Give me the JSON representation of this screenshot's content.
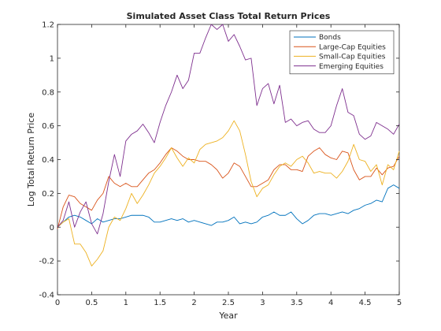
{
  "chart_data": {
    "type": "line",
    "title": "Simulated Asset Class Total Return Prices",
    "xlabel": "Year",
    "ylabel": "Log Total Return Price",
    "xlim": [
      0,
      5
    ],
    "ylim": [
      -0.4,
      1.2
    ],
    "xticks": [
      "0",
      "0.5",
      "1",
      "1.5",
      "2",
      "2.5",
      "3",
      "3.5",
      "4",
      "4.5",
      "5"
    ],
    "yticks": [
      "-0.4",
      "-0.2",
      "0",
      "0.2",
      "0.4",
      "0.6",
      "0.8",
      "1",
      "1.2"
    ],
    "grid": false,
    "legend_position": "top-right",
    "x": [
      0,
      0.08333,
      0.16667,
      0.25,
      0.33333,
      0.41667,
      0.5,
      0.58333,
      0.66667,
      0.75,
      0.83333,
      0.91667,
      1,
      1.08333,
      1.16667,
      1.25,
      1.33333,
      1.41667,
      1.5,
      1.58333,
      1.66667,
      1.75,
      1.83333,
      1.91667,
      2,
      2.08333,
      2.16667,
      2.25,
      2.33333,
      2.41667,
      2.5,
      2.58333,
      2.66667,
      2.75,
      2.83333,
      2.91667,
      3,
      3.08333,
      3.16667,
      3.25,
      3.33333,
      3.41667,
      3.5,
      3.58333,
      3.66667,
      3.75,
      3.83333,
      3.91667,
      4,
      4.08333,
      4.16667,
      4.25,
      4.33333,
      4.41667,
      4.5,
      4.58333,
      4.66667,
      4.75,
      4.83333,
      4.91667,
      5
    ],
    "series": [
      {
        "name": "Bonds",
        "color": "#0072BD",
        "values": [
          0,
          0.03,
          0.06,
          0.07,
          0.06,
          0.04,
          0.02,
          0.05,
          0.03,
          0.04,
          0.05,
          0.05,
          0.06,
          0.07,
          0.07,
          0.07,
          0.06,
          0.03,
          0.03,
          0.04,
          0.05,
          0.04,
          0.05,
          0.03,
          0.04,
          0.03,
          0.02,
          0.01,
          0.03,
          0.03,
          0.04,
          0.06,
          0.02,
          0.03,
          0.02,
          0.03,
          0.06,
          0.07,
          0.09,
          0.07,
          0.07,
          0.09,
          0.05,
          0.02,
          0.04,
          0.07,
          0.08,
          0.08,
          0.07,
          0.08,
          0.09,
          0.08,
          0.1,
          0.11,
          0.13,
          0.14,
          0.16,
          0.15,
          0.23,
          0.25,
          0.23
        ]
      },
      {
        "name": "Large-Cap Equities",
        "color": "#D95319",
        "values": [
          -0.01,
          0.12,
          0.19,
          0.18,
          0.14,
          0.12,
          0.1,
          0.16,
          0.2,
          0.3,
          0.26,
          0.24,
          0.26,
          0.24,
          0.24,
          0.28,
          0.32,
          0.34,
          0.38,
          0.43,
          0.47,
          0.45,
          0.42,
          0.4,
          0.4,
          0.39,
          0.39,
          0.37,
          0.34,
          0.29,
          0.32,
          0.38,
          0.36,
          0.3,
          0.24,
          0.24,
          0.26,
          0.28,
          0.34,
          0.37,
          0.37,
          0.34,
          0.34,
          0.33,
          0.42,
          0.45,
          0.47,
          0.43,
          0.41,
          0.4,
          0.45,
          0.44,
          0.34,
          0.28,
          0.3,
          0.3,
          0.35,
          0.31,
          0.35,
          0.36,
          0.42
        ]
      },
      {
        "name": "Small-Cap Equities",
        "color": "#EDB120",
        "values": [
          0,
          0.03,
          0.05,
          -0.1,
          -0.1,
          -0.15,
          -0.23,
          -0.19,
          -0.14,
          0,
          0.06,
          0.04,
          0.11,
          0.2,
          0.14,
          0.19,
          0.25,
          0.32,
          0.36,
          0.41,
          0.47,
          0.41,
          0.36,
          0.41,
          0.38,
          0.46,
          0.49,
          0.5,
          0.51,
          0.53,
          0.57,
          0.63,
          0.57,
          0.43,
          0.27,
          0.18,
          0.23,
          0.25,
          0.31,
          0.36,
          0.38,
          0.36,
          0.4,
          0.42,
          0.38,
          0.32,
          0.33,
          0.32,
          0.32,
          0.29,
          0.33,
          0.39,
          0.49,
          0.4,
          0.39,
          0.33,
          0.37,
          0.25,
          0.37,
          0.34,
          0.45
        ]
      },
      {
        "name": "Emerging Equities",
        "color": "#7E2F8E",
        "values": [
          0,
          0.04,
          0.15,
          0.0,
          0.09,
          0.15,
          0.02,
          -0.04,
          0.08,
          0.27,
          0.43,
          0.3,
          0.51,
          0.55,
          0.57,
          0.61,
          0.56,
          0.5,
          0.62,
          0.72,
          0.8,
          0.9,
          0.82,
          0.87,
          1.03,
          1.03,
          1.12,
          1.2,
          1.17,
          1.2,
          1.1,
          1.14,
          1.07,
          0.99,
          1.0,
          0.72,
          0.82,
          0.85,
          0.73,
          0.84,
          0.62,
          0.64,
          0.6,
          0.62,
          0.63,
          0.58,
          0.56,
          0.56,
          0.6,
          0.72,
          0.82,
          0.68,
          0.66,
          0.55,
          0.52,
          0.54,
          0.62,
          0.6,
          0.58,
          0.55,
          0.61
        ]
      }
    ]
  }
}
